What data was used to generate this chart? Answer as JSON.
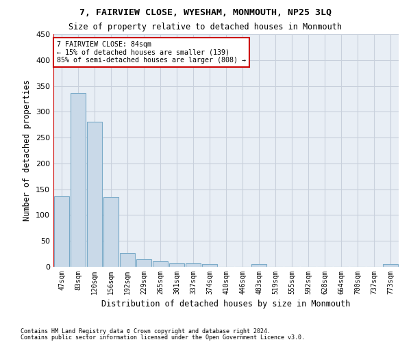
{
  "title": "7, FAIRVIEW CLOSE, WYESHAM, MONMOUTH, NP25 3LQ",
  "subtitle": "Size of property relative to detached houses in Monmouth",
  "xlabel": "Distribution of detached houses by size in Monmouth",
  "ylabel": "Number of detached properties",
  "bar_color": "#c9d9e8",
  "bar_edgecolor": "#7aaac8",
  "categories": [
    "47sqm",
    "83sqm",
    "120sqm",
    "156sqm",
    "192sqm",
    "229sqm",
    "265sqm",
    "301sqm",
    "337sqm",
    "374sqm",
    "410sqm",
    "446sqm",
    "483sqm",
    "519sqm",
    "555sqm",
    "592sqm",
    "628sqm",
    "664sqm",
    "700sqm",
    "737sqm",
    "773sqm"
  ],
  "values": [
    136,
    336,
    281,
    135,
    27,
    15,
    11,
    7,
    6,
    5,
    0,
    0,
    5,
    0,
    0,
    0,
    0,
    0,
    0,
    0,
    5
  ],
  "property_label": "7 FAIRVIEW CLOSE: 84sqm",
  "pct_smaller": 15,
  "n_smaller": 139,
  "pct_larger_semi": 85,
  "n_larger_semi": 808,
  "annotation_box_color": "#ffffff",
  "annotation_box_edgecolor": "#cc0000",
  "ylim": [
    0,
    450
  ],
  "yticks": [
    0,
    50,
    100,
    150,
    200,
    250,
    300,
    350,
    400,
    450
  ],
  "grid_color": "#c8d0dc",
  "background_color": "#e8eef5",
  "footer_line1": "Contains HM Land Registry data © Crown copyright and database right 2024.",
  "footer_line2": "Contains public sector information licensed under the Open Government Licence v3.0."
}
